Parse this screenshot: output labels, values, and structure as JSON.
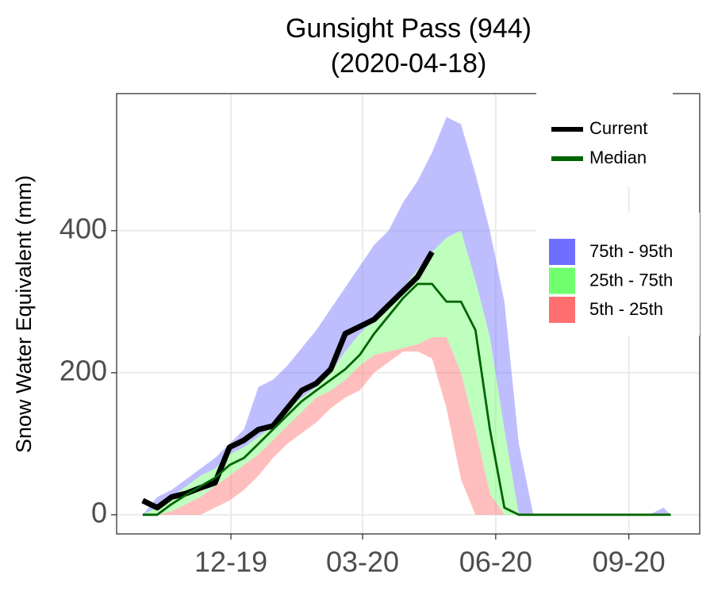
{
  "chart_data": {
    "type": "line",
    "title": "Gunsight Pass (944)",
    "subtitle": "(2020-04-18)",
    "ylabel": "Snow Water Equivalent (mm)",
    "x": [
      0,
      10,
      20,
      30,
      40,
      50,
      60,
      70,
      80,
      90,
      100,
      110,
      120,
      130,
      140,
      150,
      160,
      170,
      180,
      190,
      200,
      210,
      220,
      230,
      240,
      250,
      260,
      270,
      280,
      290,
      300,
      310,
      320,
      330,
      340,
      350,
      360,
      365
    ],
    "xlim": [
      -18,
      385
    ],
    "xticks": [
      {
        "value": 61,
        "label": "12-19"
      },
      {
        "value": 152,
        "label": "03-20"
      },
      {
        "value": 244,
        "label": "06-20"
      },
      {
        "value": 336,
        "label": "09-20"
      }
    ],
    "ylim": [
      -27,
      593
    ],
    "yticks": [
      0,
      200,
      400
    ],
    "grid": true,
    "series": [
      {
        "name": "Current",
        "color": "#000000",
        "values": [
          20,
          10,
          25,
          30,
          38,
          45,
          95,
          105,
          120,
          125,
          150,
          175,
          185,
          205,
          255,
          265,
          275,
          295,
          315,
          335,
          370,
          null,
          null,
          null,
          null,
          null,
          null,
          null,
          null,
          null,
          null,
          null,
          null,
          null,
          null,
          null,
          null,
          null
        ]
      },
      {
        "name": "Median",
        "color": "#006400",
        "values": [
          0,
          0,
          15,
          28,
          40,
          52,
          70,
          80,
          100,
          120,
          140,
          160,
          175,
          190,
          205,
          225,
          255,
          280,
          305,
          325,
          325,
          300,
          300,
          260,
          120,
          10,
          0,
          0,
          0,
          0,
          0,
          0,
          0,
          0,
          0,
          0,
          0,
          0
        ]
      }
    ],
    "bands": [
      {
        "name": "75th - 95th",
        "color": "#6f6fff",
        "low": [
          0,
          10,
          25,
          40,
          55,
          65,
          85,
          95,
          110,
          125,
          150,
          165,
          180,
          200,
          230,
          255,
          275,
          300,
          320,
          345,
          370,
          390,
          400,
          330,
          250,
          120,
          0,
          0,
          0,
          0,
          0,
          0,
          0,
          0,
          0,
          0,
          0,
          0
        ],
        "high": [
          0,
          25,
          35,
          50,
          65,
          80,
          100,
          120,
          180,
          190,
          210,
          235,
          260,
          290,
          320,
          350,
          380,
          400,
          440,
          470,
          510,
          560,
          550,
          480,
          400,
          300,
          100,
          0,
          0,
          0,
          0,
          0,
          0,
          0,
          0,
          0,
          10,
          0
        ]
      },
      {
        "name": "25th - 75th",
        "color": "#6fff6f",
        "low": [
          0,
          0,
          5,
          15,
          25,
          40,
          55,
          70,
          85,
          105,
          125,
          145,
          165,
          175,
          190,
          210,
          225,
          230,
          235,
          240,
          250,
          250,
          200,
          120,
          30,
          0,
          0,
          0,
          0,
          0,
          0,
          0,
          0,
          0,
          0,
          0,
          0,
          0
        ],
        "high": [
          0,
          10,
          25,
          40,
          55,
          65,
          85,
          95,
          110,
          125,
          150,
          165,
          180,
          200,
          230,
          255,
          275,
          300,
          320,
          345,
          370,
          390,
          400,
          330,
          250,
          120,
          0,
          0,
          0,
          0,
          0,
          0,
          0,
          0,
          0,
          0,
          0,
          0
        ]
      },
      {
        "name": "5th - 25th",
        "color": "#ff6f6f",
        "low": [
          0,
          0,
          0,
          0,
          0,
          10,
          20,
          35,
          55,
          80,
          100,
          115,
          130,
          150,
          165,
          175,
          200,
          215,
          230,
          230,
          220,
          150,
          50,
          0,
          0,
          0,
          0,
          0,
          0,
          0,
          0,
          0,
          0,
          0,
          0,
          0,
          0,
          0
        ],
        "high": [
          0,
          0,
          5,
          15,
          25,
          40,
          55,
          70,
          85,
          105,
          125,
          145,
          165,
          175,
          190,
          210,
          225,
          230,
          235,
          240,
          250,
          250,
          200,
          120,
          30,
          0,
          0,
          0,
          0,
          0,
          0,
          0,
          0,
          0,
          0,
          0,
          0,
          0
        ]
      }
    ]
  }
}
